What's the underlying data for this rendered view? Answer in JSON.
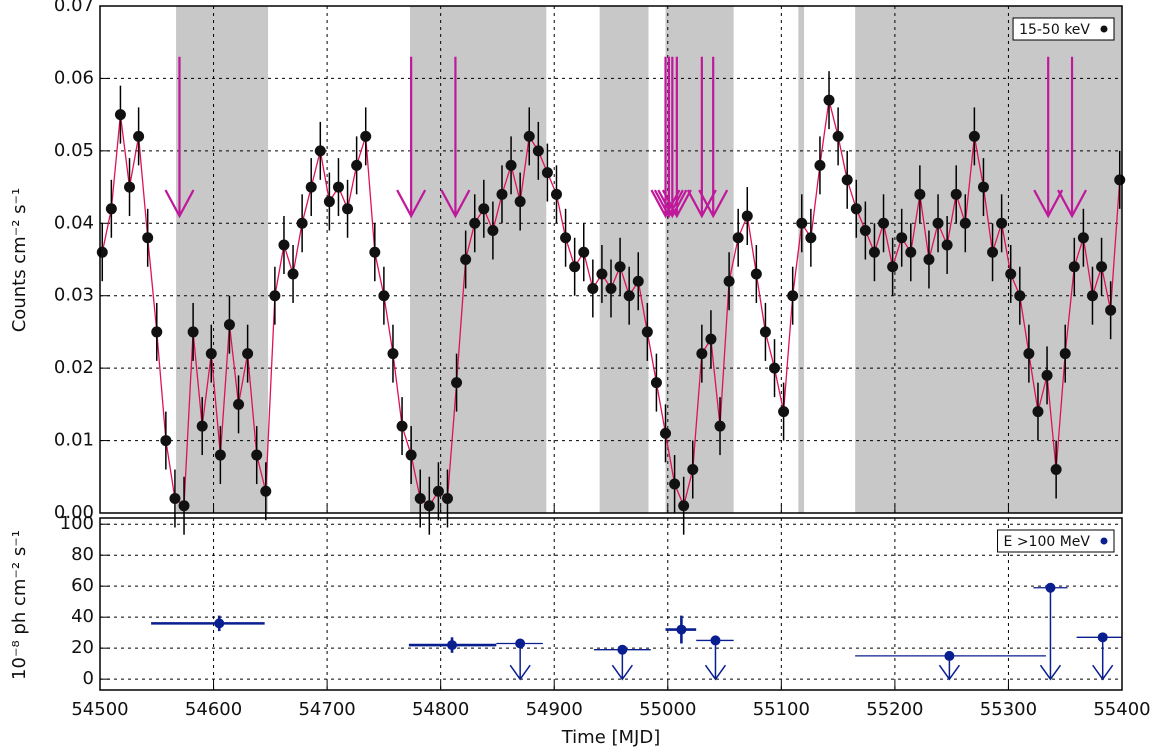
{
  "chart_data": [
    {
      "type": "scatter",
      "ylabel": "Counts cm⁻² s⁻¹",
      "legend": "15-50 keV",
      "legend_corner": "top-right",
      "xlim": [
        54500,
        55400
      ],
      "xticks": [
        54500,
        54600,
        54700,
        54800,
        54900,
        55000,
        55100,
        55200,
        55300,
        55400
      ],
      "ylim": [
        0,
        0.07
      ],
      "yticks": [
        {
          "value": 0,
          "label": "0.00"
        },
        0.01,
        0.02,
        0.03,
        0.04,
        0.05,
        0.06,
        0.07
      ],
      "grid": true,
      "color": "#111111",
      "line_color": "#e0105a",
      "error_color": "#000000",
      "yerr": 0.004,
      "shaded_intervals": [
        [
          54567,
          54648
        ],
        [
          54773,
          54893
        ],
        [
          54940,
          54983
        ],
        [
          54998,
          55058
        ],
        [
          55115,
          55120
        ],
        [
          55165,
          55400
        ]
      ],
      "shade_color": "#c8c8c8",
      "arrows": {
        "x": [
          54570,
          54774,
          54813,
          54998,
          55001,
          55004,
          55008,
          55030,
          55040,
          55335,
          55356
        ],
        "from": 0.063,
        "to": 0.041,
        "color": "#c0189a"
      },
      "x": [
        54502,
        54510,
        54518,
        54526,
        54534,
        54542,
        54550,
        54558,
        54566,
        54574,
        54582,
        54590,
        54598,
        54606,
        54614,
        54622,
        54630,
        54638,
        54646,
        54654,
        54662,
        54670,
        54678,
        54686,
        54694,
        54702,
        54710,
        54718,
        54726,
        54734,
        54742,
        54750,
        54758,
        54766,
        54774,
        54782,
        54790,
        54798,
        54806,
        54814,
        54822,
        54830,
        54838,
        54846,
        54854,
        54862,
        54870,
        54878,
        54886,
        54894,
        54902,
        54910,
        54918,
        54926,
        54934,
        54942,
        54950,
        54958,
        54966,
        54974,
        54982,
        54990,
        54998,
        55006,
        55014,
        55022,
        55030,
        55038,
        55046,
        55054,
        55062,
        55070,
        55078,
        55086,
        55094,
        55102,
        55110,
        55118,
        55126,
        55134,
        55142,
        55150,
        55158,
        55166,
        55174,
        55182,
        55190,
        55198,
        55206,
        55214,
        55222,
        55230,
        55238,
        55246,
        55254,
        55262,
        55270,
        55278,
        55286,
        55294,
        55302,
        55310,
        55318,
        55326,
        55334,
        55342,
        55350,
        55358,
        55366,
        55374,
        55382,
        55390,
        55398
      ],
      "values": [
        0.036,
        0.042,
        0.055,
        0.045,
        0.052,
        0.038,
        0.025,
        0.01,
        0.002,
        0.001,
        0.025,
        0.012,
        0.022,
        0.008,
        0.026,
        0.015,
        0.022,
        0.008,
        0.003,
        0.03,
        0.037,
        0.033,
        0.04,
        0.045,
        0.05,
        0.043,
        0.045,
        0.042,
        0.048,
        0.052,
        0.036,
        0.03,
        0.022,
        0.012,
        0.008,
        0.002,
        0.001,
        0.003,
        0.002,
        0.018,
        0.035,
        0.04,
        0.042,
        0.039,
        0.044,
        0.048,
        0.043,
        0.052,
        0.05,
        0.047,
        0.044,
        0.038,
        0.034,
        0.036,
        0.031,
        0.033,
        0.031,
        0.034,
        0.03,
        0.032,
        0.025,
        0.018,
        0.011,
        0.004,
        0.001,
        0.006,
        0.022,
        0.024,
        0.012,
        0.032,
        0.038,
        0.041,
        0.033,
        0.025,
        0.02,
        0.014,
        0.03,
        0.04,
        0.038,
        0.048,
        0.057,
        0.052,
        0.046,
        0.042,
        0.039,
        0.036,
        0.04,
        0.034,
        0.038,
        0.036,
        0.044,
        0.035,
        0.04,
        0.037,
        0.044,
        0.04,
        0.052,
        0.045,
        0.036,
        0.04,
        0.033,
        0.03,
        0.022,
        0.014,
        0.019,
        0.006,
        0.022,
        0.034,
        0.038,
        0.03,
        0.034,
        0.028,
        0.046
      ]
    },
    {
      "type": "scatter",
      "ylabel": "10⁻⁸ ph cm⁻² s⁻¹",
      "xlabel": "Time [MJD]",
      "legend": "E >100 MeV",
      "legend_corner": "top-right",
      "xlim": [
        54500,
        55400
      ],
      "xticks": [
        54500,
        54600,
        54700,
        54800,
        54900,
        55000,
        55100,
        55200,
        55300,
        55400
      ],
      "ylim": [
        -7,
        104
      ],
      "yticks": [
        0,
        20,
        40,
        60,
        80,
        100
      ],
      "grid": true,
      "color": "#0a1f8f",
      "x": [
        54605,
        54810,
        54870,
        54960,
        55012,
        55042,
        55248,
        55337,
        55383
      ],
      "xmin": [
        54545,
        54772,
        54849,
        54935,
        54998,
        55025,
        55165,
        55322,
        55360
      ],
      "xmax": [
        54645,
        54849,
        54890,
        54985,
        55025,
        55058,
        55333,
        55352,
        55400
      ],
      "values": [
        36,
        22,
        23,
        19,
        32,
        25,
        15,
        59,
        27
      ],
      "errors": [
        5,
        5,
        null,
        null,
        9,
        null,
        null,
        null,
        null
      ],
      "upper_limit": [
        false,
        false,
        true,
        true,
        false,
        true,
        true,
        true,
        true
      ]
    }
  ]
}
